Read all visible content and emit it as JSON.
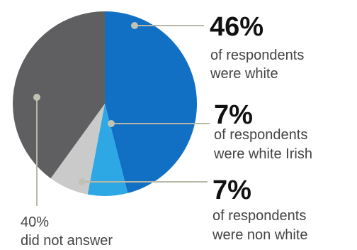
{
  "chart_data": {
    "type": "pie",
    "slices": [
      {
        "value": 46,
        "color": "#1170c4"
      },
      {
        "value": 7,
        "color": "#2ea8e4"
      },
      {
        "value": 7,
        "color": "#cacaca"
      },
      {
        "value": 40,
        "color": "#5f5f61"
      }
    ],
    "annotations": [
      {
        "value_label": "46%",
        "line1": "of respondents",
        "line2": "were white"
      },
      {
        "value_label": "7%",
        "line1": "of respondents",
        "line2": "were white Irish"
      },
      {
        "value_label": "7%",
        "line1": "of respondents",
        "line2": "were non white"
      },
      {
        "value_label": "40%",
        "line1": "did not answer"
      }
    ]
  }
}
